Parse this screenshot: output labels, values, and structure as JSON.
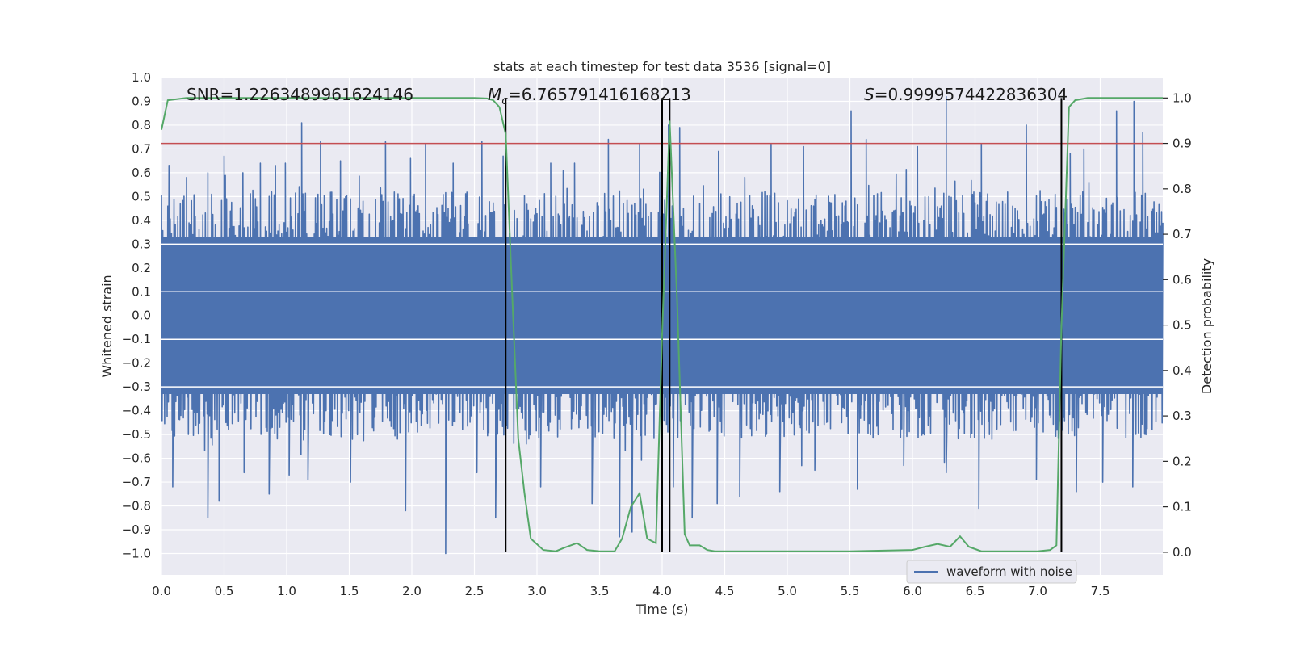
{
  "chart_data": {
    "type": "line",
    "title": "stats at each timestep for test data 3536 [signal=0]",
    "xlabel": "Time (s)",
    "ylabel": "Whitened strain",
    "y2label": "Detection probability",
    "xlim": [
      0.0,
      8.0
    ],
    "ylim": [
      -1.09,
      1.0
    ],
    "y2lim": [
      -0.05,
      1.045
    ],
    "xticks": [
      "0.0",
      "0.5",
      "1.0",
      "1.5",
      "2.0",
      "2.5",
      "3.0",
      "3.5",
      "4.0",
      "4.5",
      "5.0",
      "5.5",
      "6.0",
      "6.5",
      "7.0",
      "7.5"
    ],
    "yticks": [
      "1.0",
      "0.9",
      "0.8",
      "0.7",
      "0.6",
      "0.5",
      "0.4",
      "0.3",
      "0.2",
      "0.1",
      "0.0",
      "−0.1",
      "−0.2",
      "−0.3",
      "−0.4",
      "−0.5",
      "−0.6",
      "−0.7",
      "−0.8",
      "−0.9",
      "−1.0"
    ],
    "y2ticks": [
      "1.0",
      "0.9",
      "0.8",
      "0.7",
      "0.6",
      "0.5",
      "0.4",
      "0.3",
      "0.2",
      "0.1",
      "0.0"
    ],
    "annotations": {
      "snr": "SNR=1.2263489961624146",
      "mc_symbol": "M",
      "mc_sub": "c",
      "mc_value": "=6.765791416168213",
      "s_symbol": "S",
      "s_value": "=0.9999574422836304"
    },
    "threshold": 0.9,
    "vlines": [
      2.75,
      4.0,
      4.06,
      7.19
    ],
    "series": [
      {
        "name": "waveform with noise",
        "axis": "left",
        "color": "#4c72b0",
        "duration": 8.0,
        "sample_count": 1600,
        "spikes_pos": [
          [
            0.2,
            0.58
          ],
          [
            0.37,
            0.6
          ],
          [
            0.5,
            0.67
          ],
          [
            0.65,
            0.6
          ],
          [
            0.79,
            0.64
          ],
          [
            0.99,
            0.64
          ],
          [
            1.12,
            0.81
          ],
          [
            1.27,
            0.73
          ],
          [
            1.43,
            0.65
          ],
          [
            1.79,
            0.73
          ],
          [
            1.99,
            0.66
          ],
          [
            2.11,
            0.72
          ],
          [
            2.33,
            0.64
          ],
          [
            2.56,
            0.73
          ],
          [
            2.73,
            0.67
          ],
          [
            3.11,
            0.64
          ],
          [
            3.3,
            0.64
          ],
          [
            3.57,
            0.74
          ],
          [
            3.82,
            0.72
          ],
          [
            4.05,
            0.8
          ],
          [
            4.14,
            0.79
          ],
          [
            4.45,
            0.69
          ],
          [
            4.87,
            0.72
          ],
          [
            5.13,
            0.71
          ],
          [
            5.51,
            0.86
          ],
          [
            5.63,
            0.74
          ],
          [
            6.04,
            0.71
          ],
          [
            6.27,
            0.92
          ],
          [
            6.55,
            0.72
          ],
          [
            6.91,
            0.8
          ],
          [
            7.26,
            0.68
          ],
          [
            7.37,
            0.7
          ],
          [
            7.63,
            0.86
          ],
          [
            7.77,
            0.9
          ],
          [
            7.84,
            0.77
          ]
        ],
        "spikes_neg": [
          [
            0.09,
            -0.72
          ],
          [
            0.37,
            -0.85
          ],
          [
            0.46,
            -0.78
          ],
          [
            0.66,
            -0.66
          ],
          [
            0.86,
            -0.75
          ],
          [
            1.02,
            -0.67
          ],
          [
            1.17,
            -0.69
          ],
          [
            1.51,
            -0.7
          ],
          [
            1.95,
            -0.82
          ],
          [
            2.27,
            -1.0
          ],
          [
            2.52,
            -0.66
          ],
          [
            2.67,
            -0.85
          ],
          [
            3.03,
            -0.72
          ],
          [
            3.44,
            -0.79
          ],
          [
            3.66,
            -0.93
          ],
          [
            3.76,
            -0.91
          ],
          [
            4.09,
            -0.72
          ],
          [
            4.24,
            -0.85
          ],
          [
            4.44,
            -0.79
          ],
          [
            4.62,
            -0.76
          ],
          [
            4.94,
            -0.74
          ],
          [
            5.22,
            -0.65
          ],
          [
            5.56,
            -0.73
          ],
          [
            5.93,
            -0.63
          ],
          [
            6.27,
            -0.66
          ],
          [
            6.53,
            -0.81
          ],
          [
            6.99,
            -0.69
          ],
          [
            7.31,
            -0.74
          ],
          [
            7.52,
            -0.7
          ],
          [
            7.76,
            -0.72
          ]
        ]
      },
      {
        "name": "detection probability",
        "axis": "right",
        "color": "#55a868",
        "x": [
          0.0,
          0.05,
          0.2,
          0.5,
          1.0,
          1.5,
          2.0,
          2.5,
          2.6,
          2.65,
          2.7,
          2.75,
          2.8,
          2.85,
          2.9,
          2.95,
          3.05,
          3.15,
          3.22,
          3.32,
          3.4,
          3.5,
          3.62,
          3.68,
          3.75,
          3.82,
          3.88,
          3.95,
          4.0,
          4.06,
          4.12,
          4.18,
          4.22,
          4.3,
          4.36,
          4.42,
          4.5,
          5.0,
          5.5,
          6.0,
          6.1,
          6.2,
          6.3,
          6.38,
          6.45,
          6.55,
          7.0,
          7.1,
          7.15,
          7.19,
          7.25,
          7.3,
          7.4,
          7.5,
          8.0
        ],
        "y": [
          0.93,
          0.995,
          1.0,
          1.0,
          1.0,
          1.0,
          1.0,
          1.0,
          0.999,
          0.995,
          0.98,
          0.92,
          0.58,
          0.25,
          0.13,
          0.03,
          0.005,
          0.002,
          0.01,
          0.02,
          0.005,
          0.002,
          0.002,
          0.03,
          0.1,
          0.13,
          0.03,
          0.02,
          0.48,
          0.95,
          0.55,
          0.04,
          0.015,
          0.015,
          0.005,
          0.002,
          0.002,
          0.002,
          0.002,
          0.005,
          0.012,
          0.018,
          0.012,
          0.035,
          0.012,
          0.002,
          0.002,
          0.005,
          0.015,
          0.5,
          0.98,
          0.995,
          1.0,
          1.0,
          1.0
        ]
      }
    ],
    "threshold_color": "#c44e52",
    "vline_color": "#000000",
    "legend": {
      "entries": [
        "waveform with noise"
      ],
      "placement": "lower-right"
    },
    "grid": true
  }
}
